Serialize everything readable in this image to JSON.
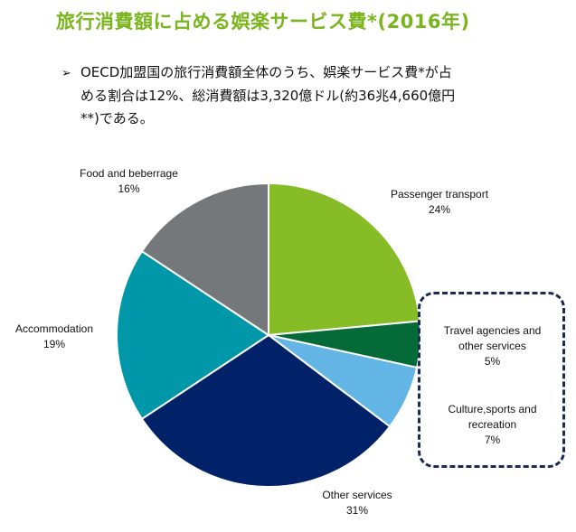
{
  "title": "旅行消費額に占める娯楽サービス費*(2016年)",
  "bullet": {
    "marker": "➢",
    "lines": [
      "OECD加盟国の旅行消費額全体のうち、娯楽サービス費*が占",
      "める割合は12%、総消費額は3,320億ドル(約36兆4,660億円",
      "**)である。"
    ]
  },
  "chart_data": {
    "type": "pie",
    "title": "",
    "slices": [
      {
        "label": "Passenger transport",
        "value": 24,
        "pct_label": "24%",
        "color": "#86bc25"
      },
      {
        "label": "Travel agencies and other services",
        "value": 5,
        "pct_label": "5%",
        "color": "#046a38"
      },
      {
        "label": "Culture,sports and recreation",
        "value": 7,
        "pct_label": "7%",
        "color": "#62b5e5"
      },
      {
        "label": "Other services",
        "value": 31,
        "pct_label": "31%",
        "color": "#012169"
      },
      {
        "label": "Accommodation",
        "value": 19,
        "pct_label": "19%",
        "color": "#0097a9"
      },
      {
        "label": "Food and beberrage",
        "value": 16,
        "pct_label": "16%",
        "color": "#75787b"
      }
    ],
    "start_angle_deg": 0,
    "direction": "clockwise",
    "highlight": [
      "Travel agencies and other services",
      "Culture,sports and recreation"
    ],
    "highlight_border_color": "#1b2b55"
  },
  "labels": {
    "passenger": {
      "name": "Passenger transport",
      "pct": "24%"
    },
    "travel": {
      "name1": "Travel agencies and",
      "name2": "other services",
      "pct": "5%"
    },
    "culture": {
      "name1": "Culture,sports and",
      "name2": "recreation",
      "pct": "7%"
    },
    "other": {
      "name": "Other services",
      "pct": "31%"
    },
    "accommodation": {
      "name": "Accommodation",
      "pct": "19%"
    },
    "food": {
      "name": "Food and beberrage",
      "pct": "16%"
    }
  }
}
